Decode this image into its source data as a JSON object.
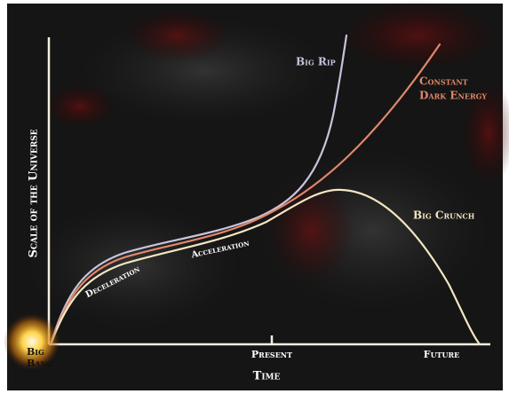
{
  "curves": {
    "big_rip": "Big Rip",
    "constant_dark_energy": [
      "Constant",
      "Dark Energy"
    ],
    "big_crunch": "Big Crunch"
  },
  "phases": {
    "deceleration": "Deceleration",
    "acceleration": "Acceleration"
  },
  "axes": {
    "y_label": "Scale of the Universe",
    "x_label": "Time",
    "present": "Present",
    "future": "Future"
  },
  "origin": [
    "Big",
    "Bang"
  ]
}
